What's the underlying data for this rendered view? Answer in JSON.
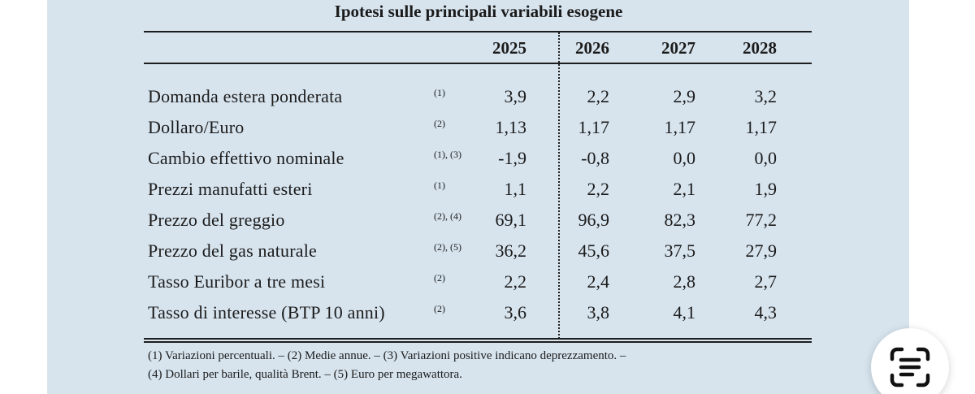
{
  "table": {
    "title": "Ipotesi sulle principali variabili esogene",
    "years": [
      "2025",
      "2026",
      "2027",
      "2028"
    ],
    "rows": [
      {
        "label": "Domanda estera ponderata",
        "note": "(1)",
        "values": [
          "3,9",
          "2,2",
          "2,9",
          "3,2"
        ]
      },
      {
        "label": "Dollaro/Euro",
        "note": "(2)",
        "values": [
          "1,13",
          "1,17",
          "1,17",
          "1,17"
        ]
      },
      {
        "label": "Cambio effettivo nominale",
        "note": "(1), (3)",
        "values": [
          "-1,9",
          "-0,8",
          "0,0",
          "0,0"
        ]
      },
      {
        "label": "Prezzi manufatti esteri",
        "note": "(1)",
        "values": [
          "1,1",
          "2,2",
          "2,1",
          "1,9"
        ]
      },
      {
        "label": "Prezzo del greggio",
        "note": "(2), (4)",
        "values": [
          "69,1",
          "96,9",
          "82,3",
          "77,2"
        ]
      },
      {
        "label": "Prezzo del gas naturale",
        "note": "(2), (5)",
        "values": [
          "36,2",
          "45,6",
          "37,5",
          "27,9"
        ]
      },
      {
        "label": "Tasso Euribor a tre mesi",
        "note": "(2)",
        "values": [
          "2,2",
          "2,4",
          "2,8",
          "2,7"
        ]
      },
      {
        "label": "Tasso di interesse (BTP 10 anni)",
        "note": "(2)",
        "values": [
          "3,6",
          "3,8",
          "4,1",
          "4,3"
        ]
      }
    ],
    "footnotes": [
      "(1) Variazioni percentuali. – (2) Medie annue. – (3) Variazioni positive indicano deprezzamento. –",
      "(4) Dollari per barile, qualità Brent. – (5) Euro per megawattora."
    ]
  },
  "overlay": {
    "icon": "text-scan-icon"
  }
}
